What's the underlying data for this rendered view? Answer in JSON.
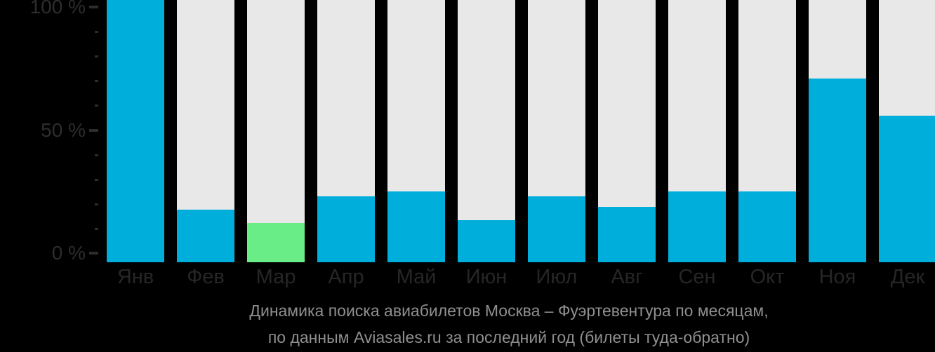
{
  "caption": {
    "line1": "Динамика поиска авиабилетов Москва – Фуэртевентура по месяцам,",
    "line2": "по данным Aviasales.ru за последний год (билеты туда-обратно)"
  },
  "chart_data": {
    "type": "bar",
    "title": "Динамика поиска авиабилетов Москва – Фуэртевентура по месяцам, по данным Aviasales.ru за последний год (билеты туда-обратно)",
    "categories": [
      "Янв",
      "Фев",
      "Мар",
      "Апр",
      "Май",
      "Июн",
      "Июл",
      "Авг",
      "Сен",
      "Окт",
      "Ноя",
      "Дек"
    ],
    "values": [
      100,
      20,
      15,
      25,
      27,
      16,
      25,
      21,
      27,
      27,
      70,
      56
    ],
    "unit": "%",
    "highlight": {
      "index": 2,
      "category": "Мар"
    },
    "xlabel": "",
    "ylabel": "",
    "ylim": [
      0,
      100
    ],
    "yticks": [
      {
        "value": 0,
        "label": "0 %"
      },
      {
        "value": 50,
        "label": "50 %"
      },
      {
        "value": 100,
        "label": "100 %"
      }
    ],
    "minor_tick_step": 10,
    "grid": false,
    "legend": false,
    "colors": {
      "background": "#000000",
      "bar": "#00aedc",
      "highlight_bar": "#69ee87",
      "bar_track": "#e8e8e8",
      "axis": "#2d2d2d",
      "month_label": "#262626",
      "caption": "#8f8f8f"
    }
  }
}
